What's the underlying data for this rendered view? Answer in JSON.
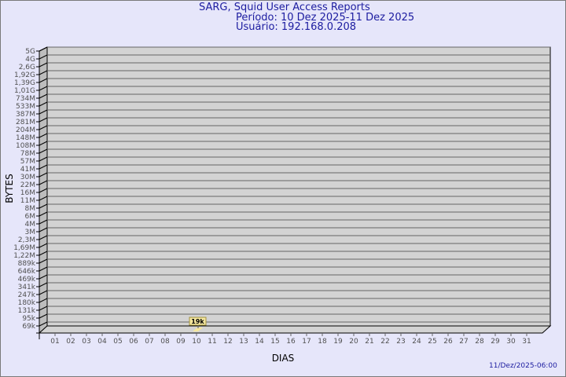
{
  "header": {
    "title": "SARG, Squid User Access Reports",
    "period": "Período: 10 Dez 2025-11 Dez 2025",
    "user": "Usuário: 192.168.0.208"
  },
  "footer": {
    "timestamp": "11/Dez/2025-06:00"
  },
  "colors": {
    "background": "#e6e6fa",
    "wall": "#d3d3d3",
    "bar": "#f5e79e",
    "title": "#1c1ca0"
  },
  "chart_data": {
    "type": "bar",
    "xlabel": "DIAS",
    "ylabel": "BYTES",
    "x_ticks": [
      "01",
      "02",
      "03",
      "04",
      "05",
      "06",
      "07",
      "08",
      "09",
      "10",
      "11",
      "12",
      "13",
      "14",
      "15",
      "16",
      "17",
      "18",
      "19",
      "20",
      "21",
      "22",
      "23",
      "24",
      "25",
      "26",
      "27",
      "28",
      "29",
      "30",
      "31"
    ],
    "y_ticks": [
      "5G",
      "4G",
      "2,6G",
      "1,92G",
      "1,39G",
      "1,01G",
      "734M",
      "533M",
      "387M",
      "281M",
      "204M",
      "148M",
      "108M",
      "78M",
      "57M",
      "41M",
      "30M",
      "22M",
      "16M",
      "11M",
      "8M",
      "6M",
      "4M",
      "3M",
      "2,3M",
      "1,69M",
      "1,22M",
      "889k",
      "646k",
      "469k",
      "341k",
      "247k",
      "180k",
      "131k",
      "95k",
      "69k"
    ],
    "grid": true,
    "points": [
      {
        "x": "10",
        "value": 19000,
        "label": "19k"
      }
    ]
  }
}
